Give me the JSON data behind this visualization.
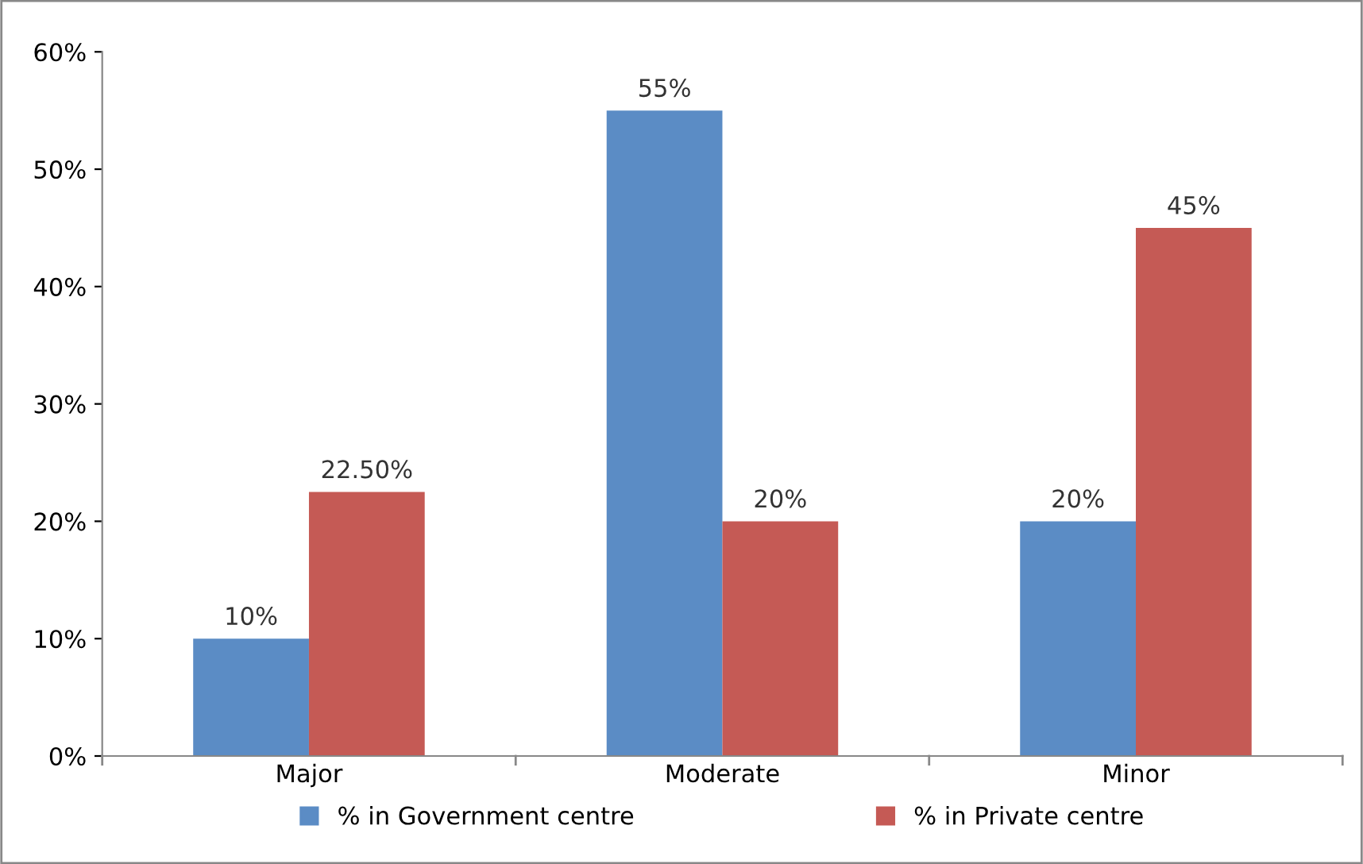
{
  "chart_data": {
    "type": "bar",
    "categories": [
      "Major",
      "Moderate",
      "Minor"
    ],
    "series": [
      {
        "name": "% in Government centre",
        "color": "#5b8cc5",
        "values": [
          10,
          55,
          20
        ],
        "value_labels": [
          "10%",
          "55%",
          "20%"
        ]
      },
      {
        "name": "% in Private centre",
        "color": "#c55a55",
        "values": [
          22.5,
          20,
          45
        ],
        "value_labels": [
          "22.50%",
          "20%",
          "45%"
        ]
      }
    ],
    "ylim": [
      0,
      60
    ],
    "yticks": [
      {
        "value": 0,
        "label": "0%"
      },
      {
        "value": 10,
        "label": "10%"
      },
      {
        "value": 20,
        "label": "20%"
      },
      {
        "value": 30,
        "label": "30%"
      },
      {
        "value": 40,
        "label": "40%"
      },
      {
        "value": 50,
        "label": "50%"
      },
      {
        "value": 60,
        "label": "60%"
      }
    ],
    "grid": false,
    "legend": "bottom"
  }
}
